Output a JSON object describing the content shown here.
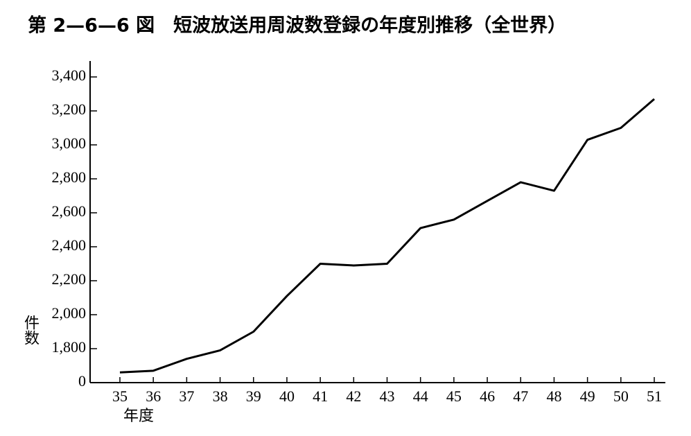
{
  "chart_data": {
    "type": "line",
    "title": "第 2—6—6 図　短波放送用周波数登録の年度別推移（全世界）",
    "y_label": "件数",
    "x_label": "年度",
    "categories": [
      "35",
      "36",
      "37",
      "38",
      "39",
      "40",
      "41",
      "42",
      "43",
      "44",
      "45",
      "46",
      "47",
      "48",
      "49",
      "50",
      "51"
    ],
    "series": [
      {
        "name": "短波放送用周波数登録",
        "color": "#000000",
        "values": [
          1660,
          1670,
          1740,
          1790,
          1900,
          2110,
          2300,
          2290,
          2300,
          2510,
          2560,
          2670,
          2780,
          2730,
          3030,
          3100,
          3270
        ]
      }
    ],
    "ylim": [
      0,
      3400
    ],
    "y_break": [
      0,
      1600
    ],
    "yticks": [
      0,
      {
        "value": 1800,
        "label": "1,800"
      },
      {
        "value": 2000,
        "label": "2,000"
      },
      {
        "value": 2200,
        "label": "2,200"
      },
      {
        "value": 2400,
        "label": "2,400"
      },
      {
        "value": 2600,
        "label": "2,600"
      },
      {
        "value": 2800,
        "label": "2,800"
      },
      {
        "value": 3000,
        "label": "3,000"
      },
      {
        "value": 3200,
        "label": "3,200"
      },
      {
        "value": 3400,
        "label": "3,400"
      }
    ],
    "grid": false
  }
}
